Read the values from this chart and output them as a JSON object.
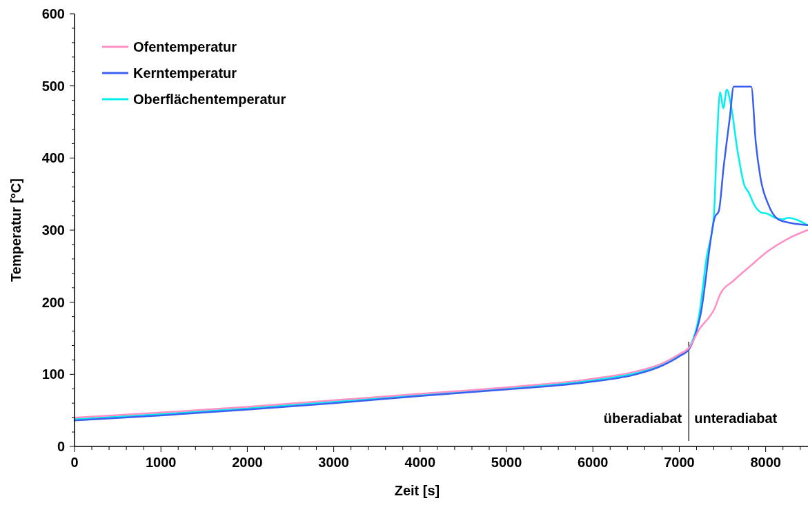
{
  "chart_data": {
    "type": "line",
    "xlabel": "Zeit [s]",
    "ylabel": "Temperatur [°C]",
    "xlim": [
      0,
      8490
    ],
    "ylim": [
      0,
      600
    ],
    "xticks": [
      0,
      {
        "value": 200,
        "label": null
      },
      {
        "value": 400,
        "label": null
      },
      {
        "value": 600,
        "label": null
      },
      {
        "value": 800,
        "label": null
      },
      1000,
      {
        "value": 1200,
        "label": null
      },
      {
        "value": 1400,
        "label": null
      },
      {
        "value": 1600,
        "label": null
      },
      {
        "value": 1800,
        "label": null
      },
      2000,
      {
        "value": 2200,
        "label": null
      },
      {
        "value": 2400,
        "label": null
      },
      {
        "value": 2600,
        "label": null
      },
      {
        "value": 2800,
        "label": null
      },
      3000,
      {
        "value": 3200,
        "label": null
      },
      {
        "value": 3400,
        "label": null
      },
      {
        "value": 3600,
        "label": null
      },
      {
        "value": 3800,
        "label": null
      },
      4000,
      {
        "value": 4200,
        "label": null
      },
      {
        "value": 4400,
        "label": null
      },
      {
        "value": 4600,
        "label": null
      },
      {
        "value": 4800,
        "label": null
      },
      5000,
      {
        "value": 5200,
        "label": null
      },
      {
        "value": 5400,
        "label": null
      },
      {
        "value": 5600,
        "label": null
      },
      {
        "value": 5800,
        "label": null
      },
      6000,
      {
        "value": 6200,
        "label": null
      },
      {
        "value": 6400,
        "label": null
      },
      {
        "value": 6600,
        "label": null
      },
      {
        "value": 6800,
        "label": null
      },
      7000,
      {
        "value": 7200,
        "label": null
      },
      {
        "value": 7400,
        "label": null
      },
      {
        "value": 7600,
        "label": null
      },
      {
        "value": 7800,
        "label": null
      },
      8000,
      {
        "value": 8200,
        "label": null
      },
      {
        "value": 8400,
        "label": null
      }
    ],
    "yticks": [
      0,
      {
        "value": 20,
        "label": null
      },
      {
        "value": 40,
        "label": null
      },
      {
        "value": 60,
        "label": null
      },
      {
        "value": 80,
        "label": null
      },
      100,
      {
        "value": 120,
        "label": null
      },
      {
        "value": 140,
        "label": null
      },
      {
        "value": 160,
        "label": null
      },
      {
        "value": 180,
        "label": null
      },
      200,
      {
        "value": 220,
        "label": null
      },
      {
        "value": 240,
        "label": null
      },
      {
        "value": 260,
        "label": null
      },
      {
        "value": 280,
        "label": null
      },
      300,
      {
        "value": 320,
        "label": null
      },
      {
        "value": 340,
        "label": null
      },
      {
        "value": 360,
        "label": null
      },
      {
        "value": 380,
        "label": null
      },
      400,
      {
        "value": 420,
        "label": null
      },
      {
        "value": 440,
        "label": null
      },
      {
        "value": 460,
        "label": null
      },
      {
        "value": 480,
        "label": null
      },
      500,
      {
        "value": 520,
        "label": null
      },
      {
        "value": 540,
        "label": null
      },
      {
        "value": 560,
        "label": null
      },
      {
        "value": 580,
        "label": null
      },
      600
    ],
    "grid": false,
    "legend": "top left",
    "marker": "none",
    "line_style": "solid",
    "series": [
      {
        "name": "Ofentemperatur",
        "color": "#ff8fc4",
        "x": [
          0,
          1000,
          2000,
          3000,
          4000,
          5000,
          6000,
          6500,
          6800,
          7000,
          7114,
          7230,
          7415,
          7473,
          7630,
          7830,
          8029,
          8256,
          8484
        ],
        "values": [
          40,
          47,
          55,
          64,
          73,
          82,
          94,
          104,
          115,
          128,
          137,
          162,
          193,
          211,
          230,
          251,
          271,
          288,
          300
        ]
      },
      {
        "name": "Kerntemperatur",
        "color": "#3a5ff0",
        "x": [
          0,
          1000,
          2000,
          3000,
          4000,
          5000,
          6000,
          6500,
          6800,
          7000,
          7114,
          7245,
          7415,
          7457,
          7513,
          7585,
          7630,
          7833,
          7886,
          7944,
          8029,
          8144,
          8285,
          8484
        ],
        "values": [
          36,
          43,
          51,
          60,
          70,
          79,
          90,
          100,
          112,
          125,
          135,
          182,
          319,
          326,
          387,
          456,
          499,
          499,
          421,
          370,
          336,
          315,
          310,
          307
        ]
      },
      {
        "name": "Oberflächentemperatur",
        "color": "#00f0f0",
        "x": [
          0,
          1000,
          2000,
          3000,
          4000,
          5000,
          6000,
          6500,
          6800,
          7000,
          7114,
          7230,
          7315,
          7400,
          7435,
          7473,
          7510,
          7550,
          7600,
          7673,
          7757,
          7800,
          7872,
          7957,
          8014,
          8111,
          8200,
          8256,
          8484
        ],
        "values": [
          38,
          45,
          53,
          62,
          72,
          81,
          92,
          102,
          113,
          126,
          137,
          182,
          261,
          319,
          421,
          491,
          469,
          495,
          472,
          411,
          361,
          353,
          334,
          324,
          323,
          317,
          315,
          317,
          307
        ]
      }
    ],
    "ref_lines": [
      {
        "axis": "x",
        "value": 7110,
        "color": "#000000",
        "line_style": "solid"
      }
    ],
    "annotations": [
      "überadiabat",
      "unteradiabat"
    ]
  }
}
